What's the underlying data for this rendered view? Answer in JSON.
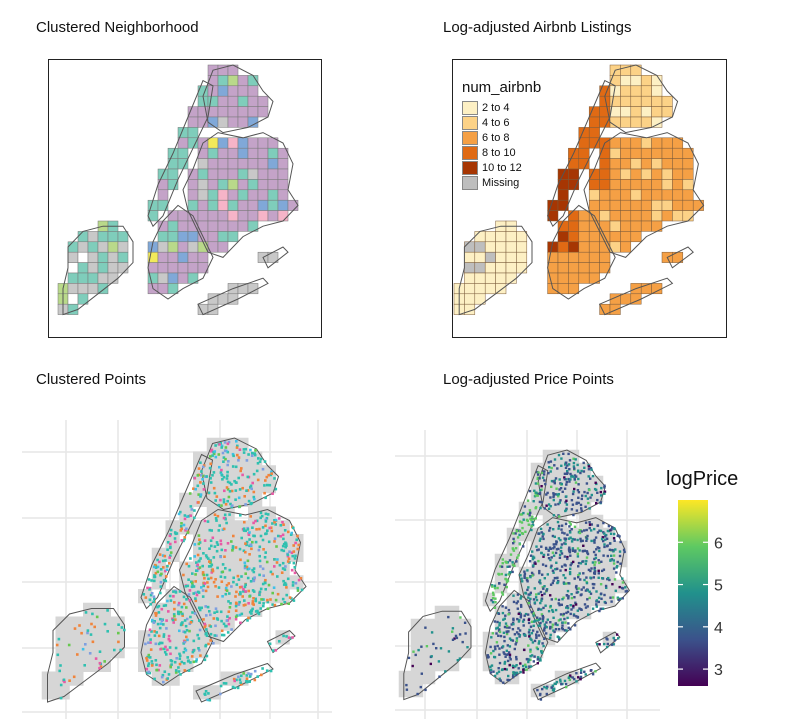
{
  "panels": {
    "clustered_neighborhood": {
      "title": "Clustered Neighborhood",
      "palette": [
        "#c4a3c8",
        "#7fcdbb",
        "#80a8d8",
        "#b9d98a",
        "#f2ea5a",
        "#f6b4c8",
        "#c8c8c8",
        "#ffffff"
      ]
    },
    "airbnb_listings": {
      "title": "Log-adjusted Airbnb Listings",
      "legend": {
        "title": "num_airbnb",
        "items": [
          {
            "label": "2 to 4",
            "color": "#fdf0c4"
          },
          {
            "label": "4 to 6",
            "color": "#fcd287"
          },
          {
            "label": "6 to 8",
            "color": "#f5a045"
          },
          {
            "label": "8 to 10",
            "color": "#e06a14"
          },
          {
            "label": "10 to 12",
            "color": "#a63603"
          },
          {
            "label": "Missing",
            "color": "#bebebe"
          }
        ]
      }
    },
    "clustered_points": {
      "title": "Clustered Points",
      "palette": [
        "#2fc0b0",
        "#f0843c",
        "#e85aa6",
        "#7e9fe0",
        "#66c84e",
        "#40c0e8"
      ]
    },
    "price_points": {
      "title": "Log-adjusted Price Points",
      "colorbar": {
        "title": "logPrice",
        "ticks": [
          "3",
          "4",
          "5",
          "6"
        ],
        "range": [
          2.6,
          7.0
        ],
        "gradient": [
          "#440154",
          "#3b528b",
          "#21918c",
          "#5ec962",
          "#fde725"
        ]
      }
    }
  }
}
